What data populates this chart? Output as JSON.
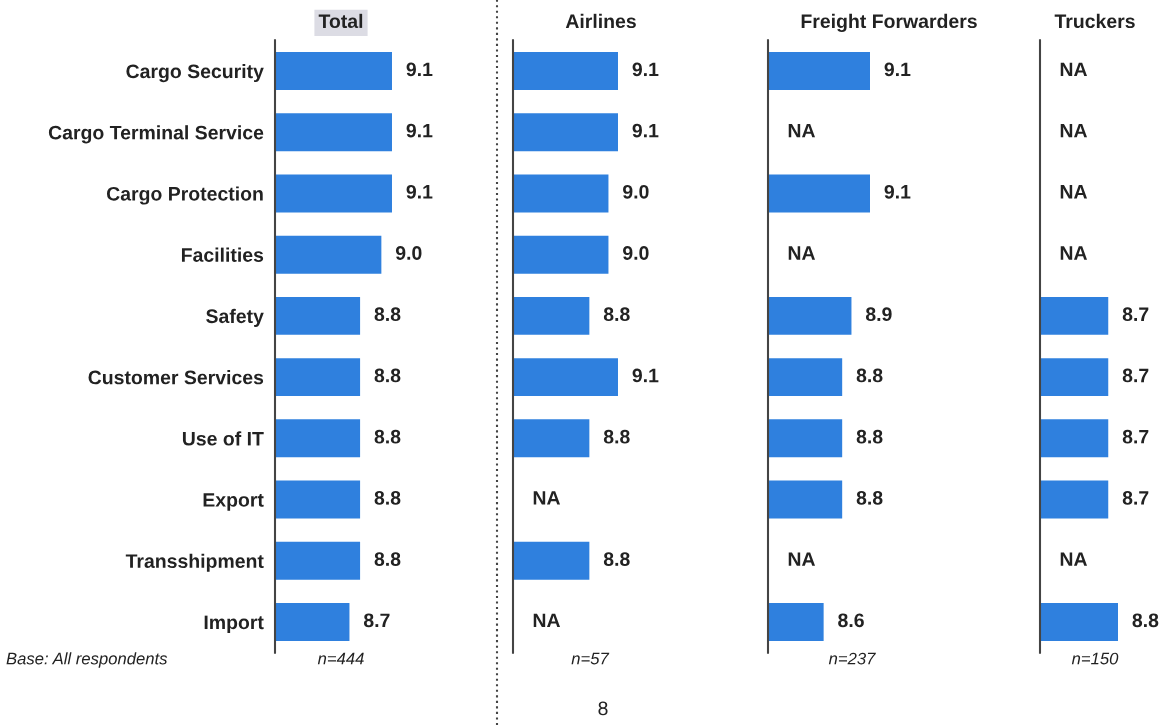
{
  "chart_data": [
    {
      "type": "bar",
      "orientation": "horizontal",
      "title": "Total",
      "categories": [
        "Cargo Security",
        "Cargo Terminal Service",
        "Cargo Protection",
        "Facilities",
        "Safety",
        "Customer Services",
        "Use of IT",
        "Export",
        "Transshipment",
        "Import"
      ],
      "values": [
        9.1,
        9.1,
        9.1,
        9.0,
        8.8,
        8.8,
        8.8,
        8.8,
        8.8,
        8.7
      ],
      "value_labels": [
        "9.1",
        "9.1",
        "9.1",
        "9.0",
        "8.8",
        "8.8",
        "8.8",
        "8.8",
        "8.8",
        "8.7"
      ],
      "color": "#2f80de",
      "xlim": [
        8.0,
        9.1
      ],
      "tick_labels": "y",
      "annotations": [
        "Base: All respondents",
        "n=444"
      ]
    },
    {
      "type": "bar",
      "orientation": "horizontal",
      "title": "Airlines",
      "categories": [
        null,
        null,
        null,
        null,
        null,
        null,
        null,
        null,
        null,
        null
      ],
      "values": [
        9.1,
        9.1,
        9.0,
        9.0,
        8.8,
        9.1,
        8.8,
        null,
        8.8,
        null
      ],
      "value_labels": [
        "9.1",
        "9.1",
        "9.0",
        "9.0",
        "8.8",
        "9.1",
        "8.8",
        "NA",
        "8.8",
        "NA"
      ],
      "color": "#2f80de",
      "xlim": [
        8.0,
        9.1
      ],
      "tick_labels": false,
      "annotations": [
        "n=57",
        "8"
      ]
    },
    {
      "type": "bar",
      "orientation": "horizontal",
      "title": "Freight Forwarders",
      "categories": [
        null,
        null,
        null,
        null,
        null,
        null,
        null,
        null,
        null,
        null
      ],
      "values": [
        9.1,
        null,
        9.1,
        null,
        8.9,
        8.8,
        8.8,
        8.8,
        null,
        8.6
      ],
      "value_labels": [
        "9.1",
        "NA",
        "9.1",
        "NA",
        "8.9",
        "8.8",
        "8.8",
        "8.8",
        "NA",
        "8.6"
      ],
      "color": "#2f80de",
      "xlim": [
        8.0,
        9.1
      ],
      "tick_labels": false,
      "annotations": [
        "n=237"
      ]
    },
    {
      "type": "bar",
      "orientation": "horizontal",
      "title": "Truckers",
      "categories": [
        null,
        null,
        null,
        null,
        null,
        null,
        null,
        null,
        null,
        null
      ],
      "values": [
        null,
        null,
        null,
        null,
        8.7,
        8.7,
        8.7,
        8.7,
        null,
        8.8
      ],
      "value_labels": [
        "NA",
        "NA",
        "NA",
        "NA",
        "8.7",
        "8.7",
        "8.7",
        "8.7",
        "NA",
        "8.8"
      ],
      "color": "#2f80de",
      "xlim": [
        8.0,
        8.8
      ],
      "tick_labels": false,
      "annotations": [
        "n=150"
      ]
    }
  ]
}
